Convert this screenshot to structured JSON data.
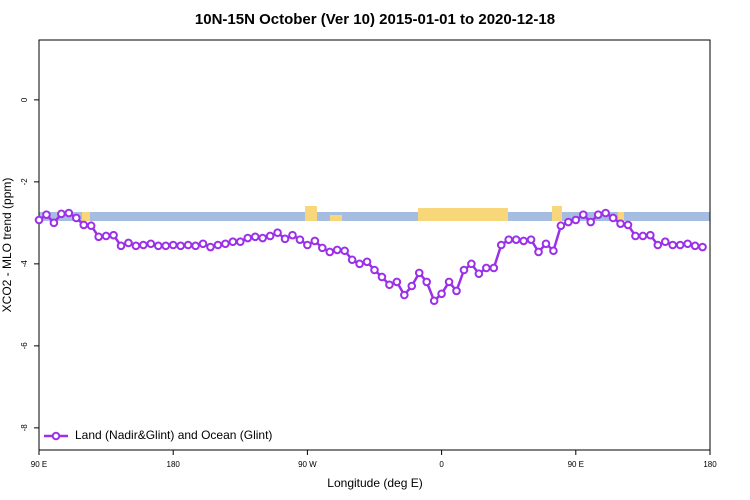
{
  "chart_data": {
    "type": "line",
    "title": "10N-15N October (Ver 10)   2015-01-01 to 2020-12-18",
    "xlabel": "Longitude (deg E)",
    "ylabel": "XCO2 - MLO trend (ppm)",
    "x": [
      90,
      95,
      100,
      105,
      110,
      115,
      120,
      125,
      130,
      135,
      140,
      145,
      150,
      155,
      160,
      165,
      170,
      175,
      180,
      185,
      190,
      195,
      200,
      205,
      210,
      215,
      220,
      225,
      230,
      235,
      240,
      245,
      250,
      255,
      260,
      265,
      270,
      275,
      280,
      285,
      290,
      295,
      300,
      305,
      310,
      315,
      320,
      325,
      330,
      335,
      340,
      345,
      350,
      355,
      360,
      365,
      370,
      375,
      380,
      385,
      390,
      395,
      400,
      405,
      410,
      415,
      420,
      425,
      430,
      435,
      440,
      445,
      450,
      455,
      460,
      465,
      470,
      475,
      480,
      485,
      490,
      495,
      500,
      505,
      510,
      515,
      520,
      525,
      530,
      535
    ],
    "series": [
      {
        "name": "Land (Nadir&Glint) and Ocean (Glint)",
        "color": "#9b30e8",
        "values": [
          -2.93,
          -2.8,
          -3.0,
          -2.78,
          -2.76,
          -2.88,
          -3.05,
          -3.07,
          -3.34,
          -3.32,
          -3.3,
          -3.56,
          -3.49,
          -3.56,
          -3.54,
          -3.51,
          -3.56,
          -3.56,
          -3.54,
          -3.56,
          -3.54,
          -3.56,
          -3.51,
          -3.59,
          -3.54,
          -3.51,
          -3.46,
          -3.46,
          -3.37,
          -3.34,
          -3.37,
          -3.32,
          -3.24,
          -3.39,
          -3.3,
          -3.41,
          -3.54,
          -3.44,
          -3.61,
          -3.71,
          -3.66,
          -3.68,
          -3.9,
          -4.0,
          -3.95,
          -4.15,
          -4.32,
          -4.51,
          -4.44,
          -4.76,
          -4.54,
          -4.22,
          -4.44,
          -4.9,
          -4.73,
          -4.44,
          -4.66,
          -4.15,
          -4.0,
          -4.24,
          -4.1,
          -4.1,
          -3.54,
          -3.41,
          -3.41,
          -3.44,
          -3.41,
          -3.71,
          -3.51,
          -3.68,
          -3.07,
          -2.98,
          -2.93,
          -2.8,
          -2.98,
          -2.8,
          -2.76,
          -2.88,
          -3.02,
          -3.05,
          -3.32,
          -3.32,
          -3.3,
          -3.54,
          -3.46,
          -3.54,
          -3.54,
          -3.51,
          -3.56,
          -3.59
        ]
      }
    ],
    "xlim": [
      90,
      540
    ],
    "xticks": [
      {
        "value": 90,
        "label": "90 E"
      },
      180,
      {
        "value": 270,
        "label": "90 W"
      },
      {
        "value": 360,
        "label": "0"
      },
      {
        "value": 450,
        "label": "90 E"
      },
      {
        "value": 540,
        "label": "180"
      }
    ],
    "ylim": [
      -8.54,
      1.46
    ],
    "yticks": [
      0,
      -2,
      -4,
      -6,
      -8
    ],
    "legend": "bottom-left"
  }
}
